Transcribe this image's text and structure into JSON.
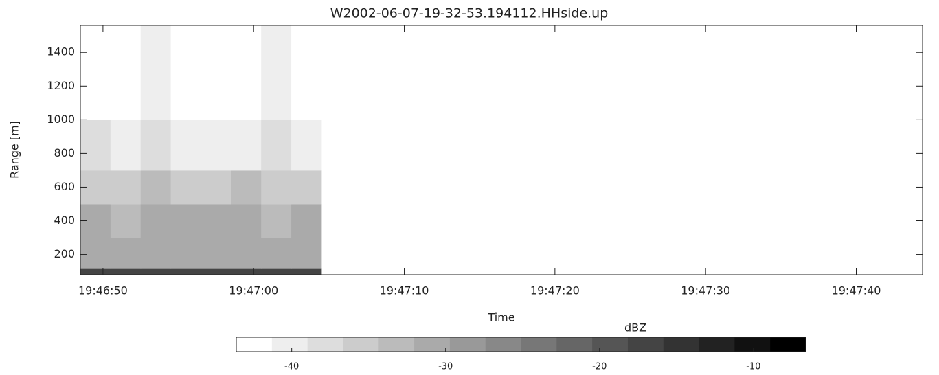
{
  "chart_data": {
    "type": "heatmap",
    "title": "W2002-06-07-19-32-53.194112.HHside.up",
    "xlabel": "Time",
    "ylabel": "Range [m]",
    "xlim": [
      "19:46:48.5",
      "19:47:44.4"
    ],
    "xticks": [
      "19:46:50",
      "19:47:00",
      "19:47:10",
      "19:47:20",
      "19:47:30",
      "19:47:40"
    ],
    "ylim": [
      80,
      1560
    ],
    "yticks": [
      200,
      400,
      600,
      800,
      1000,
      1200,
      1400
    ],
    "x": [
      "19:46:48.5",
      "19:46:50.5",
      "19:46:52.5",
      "19:46:54.5",
      "19:46:56.5",
      "19:46:58.5",
      "19:47:00.5",
      "19:47:02.5",
      "19:47:04.5"
    ],
    "y": [
      80,
      120,
      300,
      500,
      700,
      1000,
      1560
    ],
    "z": [
      [
        -16,
        -16,
        -16,
        -16,
        -16,
        -16,
        -16,
        -16
      ],
      [
        -30,
        -31,
        -30,
        -32,
        -31,
        -30,
        -31,
        -30
      ],
      [
        -31,
        -33,
        -32,
        -32,
        -31,
        -32,
        -33,
        -32
      ],
      [
        -35,
        -36,
        -34,
        -36,
        -35,
        -34,
        -35,
        -36
      ],
      [
        -38,
        -39,
        -38,
        -40,
        -39,
        -39,
        -38,
        -39
      ],
      [
        -42,
        -42,
        -41,
        -42,
        -42,
        -42,
        -41,
        -42
      ]
    ],
    "colorbar": {
      "label": "dBZ",
      "clim": [
        -43.6,
        -6.6
      ],
      "ticks": [
        -40,
        -30,
        -20,
        -10
      ],
      "colors": [
        "#ffffff",
        "#eeeeee",
        "#dddddd",
        "#cccccc",
        "#bbbbbb",
        "#aaaaaa",
        "#999999",
        "#888888",
        "#777777",
        "#666666",
        "#555555",
        "#444444",
        "#333333",
        "#222222",
        "#111111",
        "#000000"
      ]
    }
  }
}
